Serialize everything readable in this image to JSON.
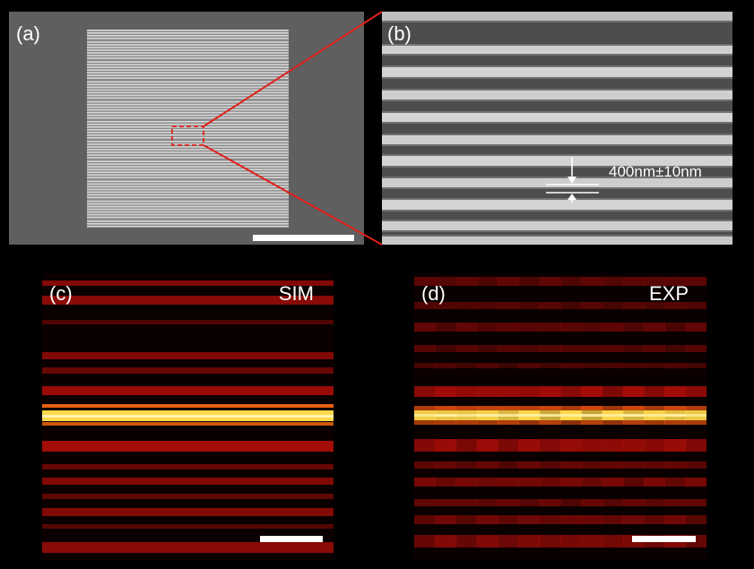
{
  "panels": {
    "a": {
      "label": "(a)"
    },
    "b": {
      "label": "(b)",
      "measurement": "400nm±10nm"
    },
    "c": {
      "label": "(c)",
      "tag": "SIM"
    },
    "d": {
      "label": "(d)",
      "tag": "EXP"
    }
  },
  "colors": {
    "sem_background": "#5e5e5e",
    "sem_stripe": "#d6d6d6",
    "zoom_indicator": "#e0201b",
    "heat_dark": "#0a0000",
    "heat_red": "#b40d08",
    "heat_bright": "#ffd84a",
    "scalebar": "#ffffff"
  }
}
